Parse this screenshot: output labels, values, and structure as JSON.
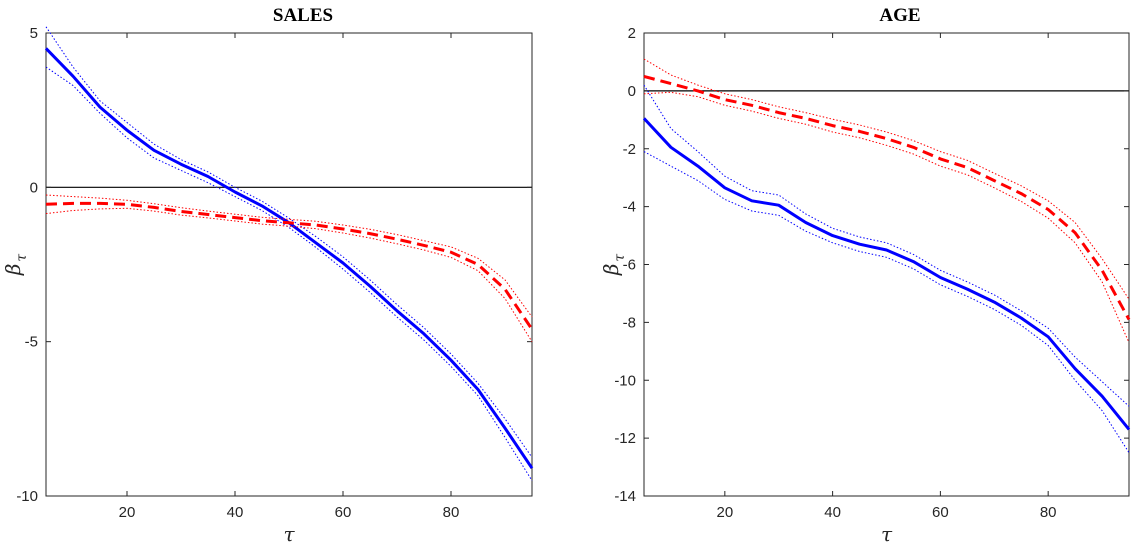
{
  "chart_data": [
    {
      "type": "line",
      "title": "SALES",
      "xlabel": "τ",
      "ylabel": "β",
      "ylabel_sub": "τ",
      "xlim": [
        5,
        95
      ],
      "ylim": [
        -10,
        5
      ],
      "xticks": [
        20,
        40,
        60,
        80
      ],
      "yticks": [
        5,
        0,
        -5,
        -10
      ],
      "reference_line": 0,
      "grid": false,
      "x": [
        5,
        10,
        15,
        20,
        25,
        30,
        35,
        40,
        45,
        50,
        55,
        60,
        65,
        70,
        75,
        80,
        85,
        90,
        95
      ],
      "series": [
        {
          "color": "#0000ff",
          "style": "solid",
          "values": [
            4.5,
            3.6,
            2.6,
            1.85,
            1.2,
            0.75,
            0.35,
            -0.15,
            -0.6,
            -1.15,
            -1.8,
            -2.45,
            -3.2,
            -4.0,
            -4.75,
            -5.6,
            -6.55,
            -7.8,
            -9.1
          ],
          "band_upper": [
            5.2,
            3.9,
            2.8,
            2.1,
            1.4,
            0.9,
            0.5,
            0.0,
            -0.45,
            -1.0,
            -1.6,
            -2.25,
            -3.0,
            -3.8,
            -4.55,
            -5.4,
            -6.35,
            -7.5,
            -8.75
          ],
          "band_lower": [
            3.9,
            3.3,
            2.4,
            1.6,
            0.95,
            0.55,
            0.15,
            -0.3,
            -0.75,
            -1.3,
            -1.95,
            -2.65,
            -3.4,
            -4.2,
            -4.95,
            -5.8,
            -6.75,
            -8.1,
            -9.5
          ]
        },
        {
          "color": "#ff0000",
          "style": "dashed",
          "values": [
            -0.55,
            -0.52,
            -0.52,
            -0.55,
            -0.65,
            -0.78,
            -0.88,
            -0.98,
            -1.08,
            -1.15,
            -1.22,
            -1.35,
            -1.5,
            -1.68,
            -1.88,
            -2.1,
            -2.5,
            -3.3,
            -4.6
          ],
          "band_upper": [
            -0.25,
            -0.3,
            -0.35,
            -0.42,
            -0.53,
            -0.66,
            -0.77,
            -0.87,
            -0.97,
            -1.04,
            -1.1,
            -1.22,
            -1.36,
            -1.53,
            -1.73,
            -1.93,
            -2.3,
            -3.0,
            -4.2
          ],
          "band_lower": [
            -0.85,
            -0.75,
            -0.7,
            -0.68,
            -0.77,
            -0.9,
            -0.99,
            -1.09,
            -1.19,
            -1.26,
            -1.34,
            -1.48,
            -1.64,
            -1.83,
            -2.03,
            -2.27,
            -2.7,
            -3.6,
            -5.0
          ]
        }
      ]
    },
    {
      "type": "line",
      "title": "AGE",
      "xlabel": "τ",
      "ylabel": "β",
      "ylabel_sub": "τ",
      "xlim": [
        5,
        95
      ],
      "ylim": [
        -14,
        2
      ],
      "xticks": [
        20,
        40,
        60,
        80
      ],
      "yticks": [
        2,
        0,
        -2,
        -4,
        -6,
        -8,
        -10,
        -12,
        -14
      ],
      "reference_line": 0,
      "grid": false,
      "x": [
        5,
        10,
        15,
        20,
        25,
        30,
        35,
        40,
        45,
        50,
        55,
        60,
        65,
        70,
        75,
        80,
        85,
        90,
        95
      ],
      "series": [
        {
          "color": "#0000ff",
          "style": "solid",
          "values": [
            -0.95,
            -1.95,
            -2.6,
            -3.35,
            -3.8,
            -3.95,
            -4.55,
            -5.0,
            -5.3,
            -5.5,
            -5.9,
            -6.45,
            -6.85,
            -7.3,
            -7.85,
            -8.5,
            -9.6,
            -10.55,
            -11.7
          ],
          "band_upper": [
            0.2,
            -1.3,
            -2.1,
            -2.95,
            -3.45,
            -3.6,
            -4.25,
            -4.75,
            -5.05,
            -5.25,
            -5.65,
            -6.2,
            -6.6,
            -7.05,
            -7.6,
            -8.2,
            -9.2,
            -10.05,
            -10.9
          ],
          "band_lower": [
            -2.1,
            -2.6,
            -3.1,
            -3.75,
            -4.15,
            -4.3,
            -4.85,
            -5.25,
            -5.55,
            -5.75,
            -6.15,
            -6.7,
            -7.1,
            -7.55,
            -8.1,
            -8.8,
            -10.0,
            -11.05,
            -12.5
          ]
        },
        {
          "color": "#ff0000",
          "style": "dashed",
          "values": [
            0.5,
            0.25,
            0.0,
            -0.3,
            -0.5,
            -0.75,
            -0.95,
            -1.2,
            -1.4,
            -1.65,
            -1.95,
            -2.35,
            -2.65,
            -3.1,
            -3.55,
            -4.1,
            -4.9,
            -6.2,
            -7.9
          ],
          "band_upper": [
            1.1,
            0.55,
            0.2,
            -0.1,
            -0.3,
            -0.55,
            -0.75,
            -0.98,
            -1.18,
            -1.42,
            -1.72,
            -2.1,
            -2.4,
            -2.85,
            -3.28,
            -3.8,
            -4.55,
            -5.8,
            -7.2
          ],
          "band_lower": [
            -0.1,
            -0.05,
            -0.2,
            -0.5,
            -0.7,
            -0.95,
            -1.15,
            -1.42,
            -1.62,
            -1.88,
            -2.18,
            -2.6,
            -2.9,
            -3.35,
            -3.82,
            -4.4,
            -5.25,
            -6.6,
            -8.7
          ]
        }
      ]
    }
  ]
}
